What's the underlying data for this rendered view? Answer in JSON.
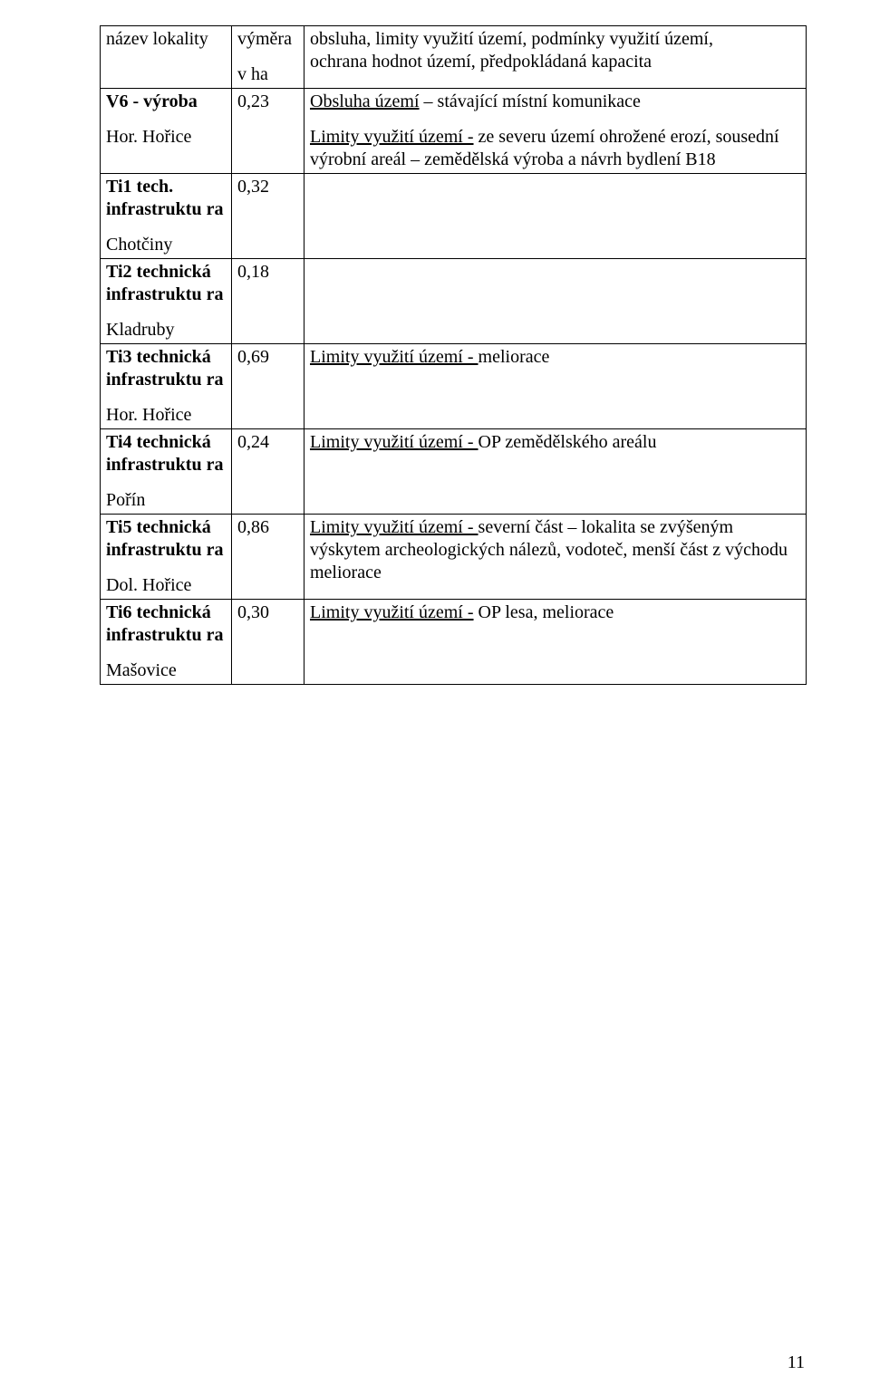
{
  "header": {
    "col1": "název lokality",
    "col2_line1": "výměra",
    "col2_line2": "v ha",
    "col3_line1": "obsluha, limity využití území, podmínky využití území,",
    "col3_line2": "ochrana hodnot území, předpokládaná kapacita"
  },
  "rows": [
    {
      "c1_l1_bold": "V6  - výroba",
      "c1_l2": "Hor. Hořice",
      "c2": "0,23",
      "c3_l1_u": "Obsluha území",
      "c3_l1_rest": " – stávající místní komunikace",
      "c3_l2_u": "Limity využití území -",
      "c3_l2_rest": " ze severu  území ohrožené erozí, sousední výrobní areál – zemědělská výroba a návrh bydlení B18"
    },
    {
      "c1_l1_bold": "Ti1 tech. infrastruktu ra",
      "c1_l2": "Chotčiny",
      "c2": "0,32"
    },
    {
      "c1_l1_bold": "Ti2 technická infrastruktu ra",
      "c1_l2": "Kladruby",
      "c2": "0,18"
    },
    {
      "c1_l1_bold": "Ti3 technická infrastruktu ra",
      "c1_l2": "Hor. Hořice",
      "c2": "0,69",
      "c3_u": "Limity využití území - ",
      "c3_rest": "  meliorace"
    },
    {
      "c1_l1_bold": "Ti4 technická infrastruktu ra",
      "c1_l2": "Pořín",
      "c2": "0,24",
      "c3_u": "Limity využití území  - ",
      "c3_rest": " OP zemědělského areálu"
    },
    {
      "c1_l1_bold": "Ti5 technická infrastruktu ra",
      "c1_l2": "Dol. Hořice",
      "c2": "0,86",
      "c3_u": "Limity využití území  - ",
      "c3_rest": " severní část – lokalita se zvýšeným výskytem archeologických nálezů, vodoteč, menší část z východu meliorace"
    },
    {
      "c1_l1_bold": "Ti6 technická infrastruktu ra",
      "c1_l2": "Mašovice",
      "c2": "0,30",
      "c3_u": "Limity využití území  -",
      "c3_rest": " OP lesa, meliorace"
    }
  ],
  "pagenum": "11"
}
